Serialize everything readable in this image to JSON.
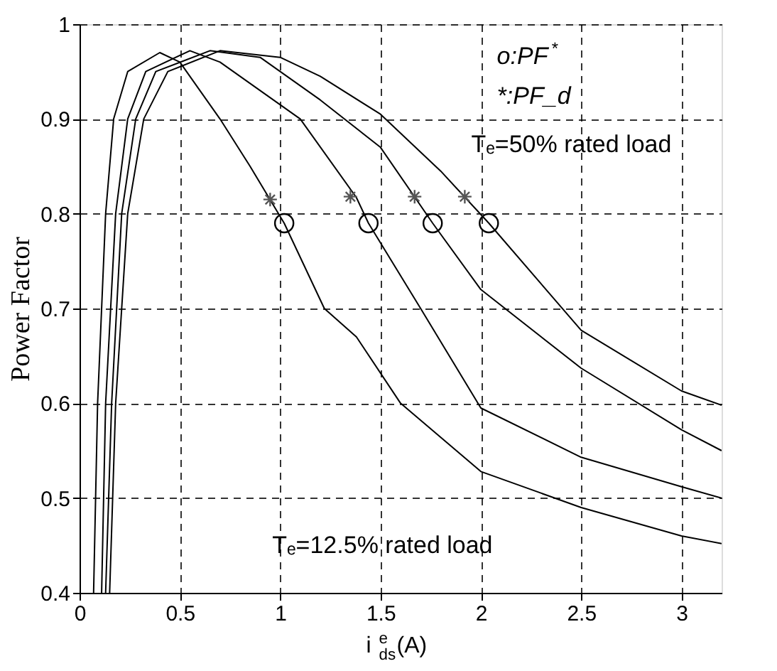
{
  "chart_data": {
    "type": "line",
    "xlabel": "i$^{e}$$_{ds}$(A)",
    "ylabel": "Power Factor",
    "xlim": [
      0,
      3.2
    ],
    "ylim": [
      0.4,
      1
    ],
    "xticks": [
      0,
      0.5,
      1,
      1.5,
      2,
      2.5,
      3
    ],
    "yticks": [
      0.4,
      0.5,
      0.6,
      0.7,
      0.8,
      0.9,
      1
    ],
    "grid": true,
    "line_style": "solid",
    "marker": "none",
    "series": [
      {
        "color": "#000000",
        "x": [
          0.07,
          0.09,
          0.13,
          0.17,
          0.24,
          0.4,
          0.5,
          0.7,
          0.85,
          1.02,
          1.22,
          1.38,
          1.6,
          2.0,
          2.5,
          3.0,
          3.2
        ],
        "values": [
          0.4,
          0.6,
          0.8,
          0.9,
          0.95,
          0.97,
          0.96,
          0.9,
          0.85,
          0.79,
          0.7,
          0.67,
          0.6,
          0.528,
          0.49,
          0.46,
          0.452
        ]
      },
      {
        "color": "#000000",
        "x": [
          0.11,
          0.13,
          0.18,
          0.24,
          0.33,
          0.55,
          0.7,
          1.1,
          1.38,
          1.44,
          1.7,
          2.0,
          2.5,
          3.0,
          3.2
        ],
        "values": [
          0.4,
          0.6,
          0.8,
          0.9,
          0.95,
          0.972,
          0.96,
          0.9,
          0.817,
          0.79,
          0.7,
          0.595,
          0.543,
          0.512,
          0.5
        ]
      },
      {
        "color": "#000000",
        "x": [
          0.13,
          0.16,
          0.21,
          0.28,
          0.38,
          0.65,
          0.9,
          1.2,
          1.5,
          1.76,
          2.0,
          2.5,
          3.0,
          3.2
        ],
        "values": [
          0.4,
          0.6,
          0.8,
          0.9,
          0.95,
          0.972,
          0.965,
          0.92,
          0.87,
          0.79,
          0.72,
          0.637,
          0.572,
          0.55
        ]
      },
      {
        "color": "#000000",
        "x": [
          0.15,
          0.18,
          0.24,
          0.32,
          0.44,
          0.7,
          1.0,
          1.2,
          1.5,
          1.8,
          2.04,
          2.5,
          3.0,
          3.2
        ],
        "values": [
          0.4,
          0.6,
          0.8,
          0.9,
          0.95,
          0.972,
          0.965,
          0.945,
          0.905,
          0.845,
          0.79,
          0.677,
          0.613,
          0.598
        ]
      },
      {
        "type": "scatter",
        "marker": "circle",
        "color": "#000000",
        "x": [
          1.02,
          1.44,
          1.76,
          2.04
        ],
        "values": [
          0.79,
          0.79,
          0.79,
          0.79
        ]
      },
      {
        "type": "scatter",
        "marker": "cross",
        "color": "#555555",
        "x": [
          0.95,
          1.35,
          1.67,
          1.92
        ],
        "values": [
          0.815,
          0.818,
          0.818,
          0.818
        ]
      }
    ],
    "annotations": [
      "o:PF$^{*}$",
      "*:PF_d",
      "Tₑ=50% rated load",
      "Tₑ=12.5% rated load"
    ]
  }
}
